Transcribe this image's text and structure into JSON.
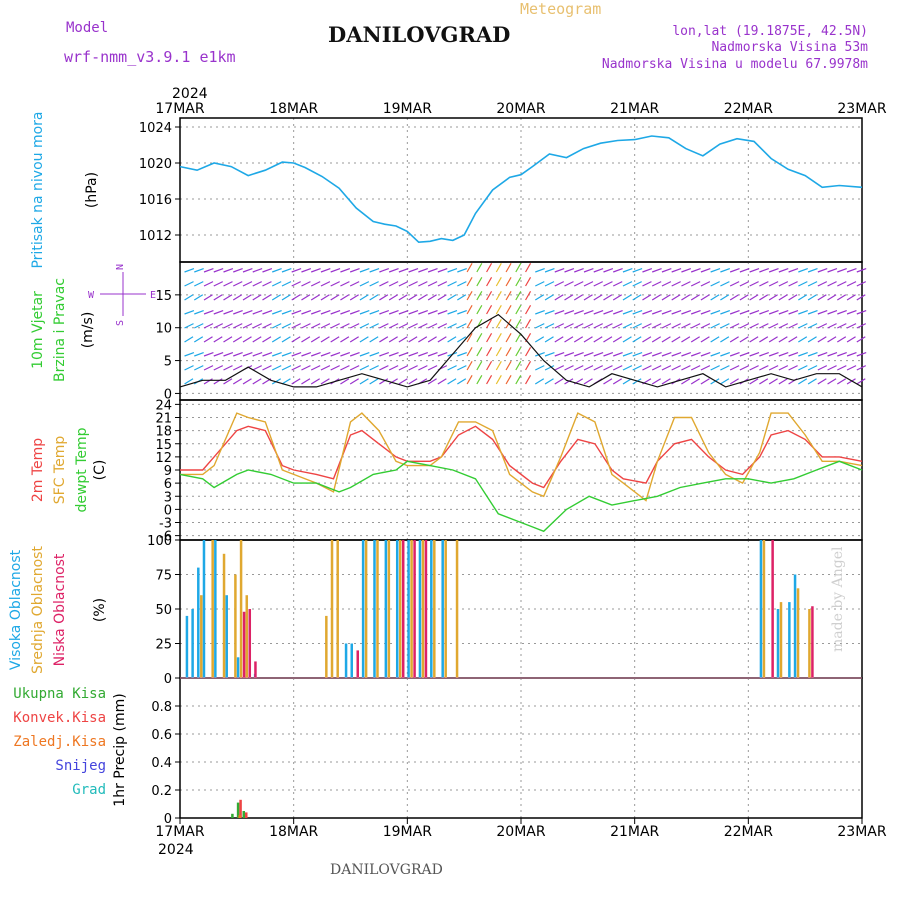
{
  "header": {
    "model_label": "Model",
    "model_name": "wrf-nmm_v3.9.1  e1km",
    "meteogram": "Meteogram",
    "station": "DANILOVGRAD",
    "lonlat": "lon,lat (19.1875E, 42.5N)",
    "elev": "Nadmorska Visina 53m",
    "elev_model": "Nadmorska Visina u modelu 67.9978m"
  },
  "footer": {
    "station": "DANILOVGRAD",
    "credit": "made by Angel"
  },
  "colors": {
    "pressure": "#1ea8e6",
    "temp2m": "#ee4444",
    "sfc": "#e0a830",
    "dewpt": "#33cc33",
    "purple": "#9933cc",
    "high": "#1ea8e6",
    "mid": "#e0a830",
    "low": "#dd2266",
    "precip_total": "#33aa33",
    "precip_conv": "#ee4444",
    "snow": "#4444dd",
    "hail": "#22bbbb",
    "frozen": "#ee7722"
  },
  "chart_data": [
    {
      "type": "line",
      "title": "Pritisak na nivou mora",
      "ylabel": "(hPa)",
      "ylim": [
        1009,
        1025
      ],
      "yticks": [
        1012,
        1016,
        1020,
        1024
      ],
      "grid": true,
      "x_dates": [
        "17MAR",
        "18MAR",
        "19MAR",
        "20MAR",
        "21MAR",
        "22MAR",
        "23MAR"
      ],
      "x_year": "2024",
      "series": [
        {
          "name": "Pritisak na nivou mora",
          "x": [
            0,
            0.15,
            0.3,
            0.45,
            0.6,
            0.75,
            0.9,
            1.0,
            1.1,
            1.25,
            1.4,
            1.55,
            1.7,
            1.8,
            1.9,
            2.0,
            2.1,
            2.2,
            2.3,
            2.4,
            2.5,
            2.6,
            2.75,
            2.9,
            3.0,
            3.1,
            3.25,
            3.4,
            3.55,
            3.7,
            3.85,
            4.0,
            4.15,
            4.3,
            4.45,
            4.6,
            4.75,
            4.9,
            5.05,
            5.2,
            5.35,
            5.5,
            5.65,
            5.8,
            6.0
          ],
          "values": [
            1019.6,
            1019.2,
            1020.0,
            1019.6,
            1018.6,
            1019.2,
            1020.1,
            1020.0,
            1019.5,
            1018.5,
            1017.2,
            1015.0,
            1013.5,
            1013.2,
            1013.0,
            1012.4,
            1011.2,
            1011.3,
            1011.6,
            1011.4,
            1012.0,
            1014.4,
            1017.0,
            1018.4,
            1018.7,
            1019.6,
            1021.0,
            1020.6,
            1021.6,
            1022.2,
            1022.5,
            1022.6,
            1023.0,
            1022.8,
            1021.6,
            1020.8,
            1022.1,
            1022.7,
            1022.4,
            1020.5,
            1019.3,
            1018.6,
            1017.3,
            1017.5,
            1017.3
          ]
        }
      ]
    },
    {
      "type": "line",
      "title": "10m Vjetar Brzina i Pravac",
      "ylabel": "(m/s)",
      "ylim": [
        -1,
        20
      ],
      "yticks": [
        0,
        5,
        10,
        15
      ],
      "grid": true,
      "compass_legend": [
        "N",
        "W",
        "E",
        "S"
      ],
      "series": [
        {
          "name": "10m Vjetar",
          "x": [
            0,
            0.2,
            0.4,
            0.6,
            0.8,
            1.0,
            1.2,
            1.4,
            1.6,
            1.8,
            2.0,
            2.2,
            2.4,
            2.6,
            2.8,
            3.0,
            3.2,
            3.4,
            3.6,
            3.8,
            4.0,
            4.2,
            4.4,
            4.6,
            4.8,
            5.0,
            5.2,
            5.4,
            5.6,
            5.8,
            6.0
          ],
          "values": [
            1,
            2,
            2,
            4,
            2,
            1,
            1,
            2,
            3,
            2,
            1,
            2,
            6,
            10,
            12,
            9,
            5,
            2,
            1,
            3,
            2,
            1,
            2,
            3,
            1,
            2,
            3,
            2,
            3,
            3,
            1
          ]
        }
      ]
    },
    {
      "type": "line",
      "ylabel": "(C)",
      "ylim": [
        -7,
        25
      ],
      "yticks": [
        -6,
        -3,
        0,
        3,
        6,
        9,
        12,
        15,
        18,
        21,
        24
      ],
      "grid": true,
      "series": [
        {
          "name": "2m Temp",
          "x": [
            0,
            0.2,
            0.3,
            0.5,
            0.6,
            0.75,
            0.9,
            1.0,
            1.2,
            1.35,
            1.5,
            1.6,
            1.75,
            1.9,
            2.0,
            2.2,
            2.3,
            2.45,
            2.6,
            2.75,
            2.9,
            3.1,
            3.2,
            3.35,
            3.5,
            3.65,
            3.8,
            3.9,
            4.1,
            4.2,
            4.35,
            4.5,
            4.65,
            4.8,
            4.95,
            5.1,
            5.2,
            5.35,
            5.5,
            5.65,
            5.8,
            6.0
          ],
          "values": [
            9,
            9,
            12,
            18,
            19,
            18,
            10,
            9,
            8,
            7,
            17,
            18,
            15,
            12,
            11,
            11,
            12,
            17,
            19,
            16,
            10,
            6,
            5,
            11,
            16,
            15,
            9,
            7,
            6,
            11,
            15,
            16,
            12,
            9,
            8,
            12,
            17,
            18,
            16,
            12,
            12,
            11
          ]
        },
        {
          "name": "SFC Temp",
          "x": [
            0,
            0.2,
            0.3,
            0.5,
            0.6,
            0.75,
            0.9,
            1.0,
            1.2,
            1.35,
            1.5,
            1.6,
            1.75,
            1.9,
            2.0,
            2.2,
            2.3,
            2.45,
            2.6,
            2.75,
            2.9,
            3.1,
            3.2,
            3.35,
            3.5,
            3.65,
            3.8,
            3.9,
            4.1,
            4.2,
            4.35,
            4.5,
            4.65,
            4.8,
            4.95,
            5.1,
            5.2,
            5.35,
            5.5,
            5.65,
            5.8,
            6.0
          ],
          "values": [
            8,
            8,
            10,
            22,
            21,
            20,
            9,
            8,
            6,
            4,
            20,
            22,
            18,
            11,
            10,
            10,
            12,
            20,
            20,
            18,
            8,
            4,
            3,
            12,
            22,
            20,
            8,
            6,
            2,
            11,
            21,
            21,
            13,
            8,
            6,
            13,
            22,
            22,
            17,
            11,
            11,
            10
          ]
        },
        {
          "name": "dewpt Temp",
          "x": [
            0,
            0.2,
            0.3,
            0.5,
            0.6,
            0.8,
            1.0,
            1.2,
            1.4,
            1.5,
            1.7,
            1.9,
            2.0,
            2.2,
            2.4,
            2.6,
            2.8,
            3.0,
            3.1,
            3.2,
            3.4,
            3.6,
            3.8,
            4.0,
            4.2,
            4.4,
            4.6,
            4.8,
            5.0,
            5.2,
            5.4,
            5.6,
            5.8,
            6.0
          ],
          "values": [
            8,
            7,
            5,
            8,
            9,
            8,
            6,
            6,
            4,
            5,
            8,
            9,
            11,
            10,
            9,
            7,
            -1,
            -3,
            -4,
            -5,
            0,
            3,
            1,
            2,
            3,
            5,
            6,
            7,
            7,
            6,
            7,
            9,
            11,
            9
          ]
        }
      ]
    },
    {
      "type": "bar",
      "ylabel": "(%)",
      "ylim": [
        0,
        100
      ],
      "yticks": [
        0,
        25,
        50,
        75,
        100
      ],
      "grid": true,
      "series": [
        {
          "name": "Visoka Oblacnost",
          "x": [
            0.05,
            0.1,
            0.15,
            0.2,
            0.3,
            0.4,
            0.5,
            0.65,
            1.45,
            1.5,
            1.6,
            1.7,
            1.8,
            1.9,
            2.0,
            2.1,
            2.2,
            2.3,
            5.1,
            5.25,
            5.35,
            5.4
          ],
          "values": [
            45,
            50,
            80,
            100,
            100,
            60,
            15,
            3,
            25,
            25,
            100,
            100,
            100,
            100,
            100,
            100,
            100,
            100,
            100,
            50,
            55,
            75
          ]
        },
        {
          "name": "Srednja Oblacnost",
          "x": [
            0.15,
            0.25,
            0.35,
            0.45,
            0.5,
            0.55,
            1.25,
            1.3,
            1.35,
            1.6,
            1.7,
            1.8,
            1.9,
            2.0,
            2.1,
            2.2,
            2.3,
            2.4,
            5.1,
            5.25,
            5.4,
            5.5
          ],
          "values": [
            60,
            100,
            90,
            75,
            100,
            60,
            45,
            100,
            100,
            100,
            100,
            100,
            100,
            100,
            100,
            100,
            100,
            100,
            100,
            55,
            65,
            50
          ]
        },
        {
          "name": "Niska Oblacnost",
          "x": [
            0.5,
            0.55,
            0.6,
            1.5,
            1.9,
            2.0,
            2.1,
            5.15,
            5.5
          ],
          "values": [
            48,
            50,
            12,
            20,
            100,
            100,
            100,
            100,
            52
          ]
        }
      ]
    },
    {
      "type": "bar",
      "ylabel": "1hr Precip (mm)",
      "ylim": [
        0,
        1.0
      ],
      "yticks": [
        0,
        0.2,
        0.4,
        0.6,
        0.8
      ],
      "grid": true,
      "series": [
        {
          "name": "Ukupna Kisa",
          "x": [
            0.45,
            0.5,
            0.55
          ],
          "values": [
            0.03,
            0.11,
            0.05
          ]
        },
        {
          "name": "Konvek.Kisa",
          "x": [
            0.5,
            0.55
          ],
          "values": [
            0.13,
            0.04
          ]
        },
        {
          "name": "Zaledj.Kisa",
          "x": [
            0.47
          ],
          "values": [
            0.02
          ]
        },
        {
          "name": "Snijeg",
          "x": [],
          "values": []
        },
        {
          "name": "Grad",
          "x": [],
          "values": []
        }
      ]
    }
  ]
}
